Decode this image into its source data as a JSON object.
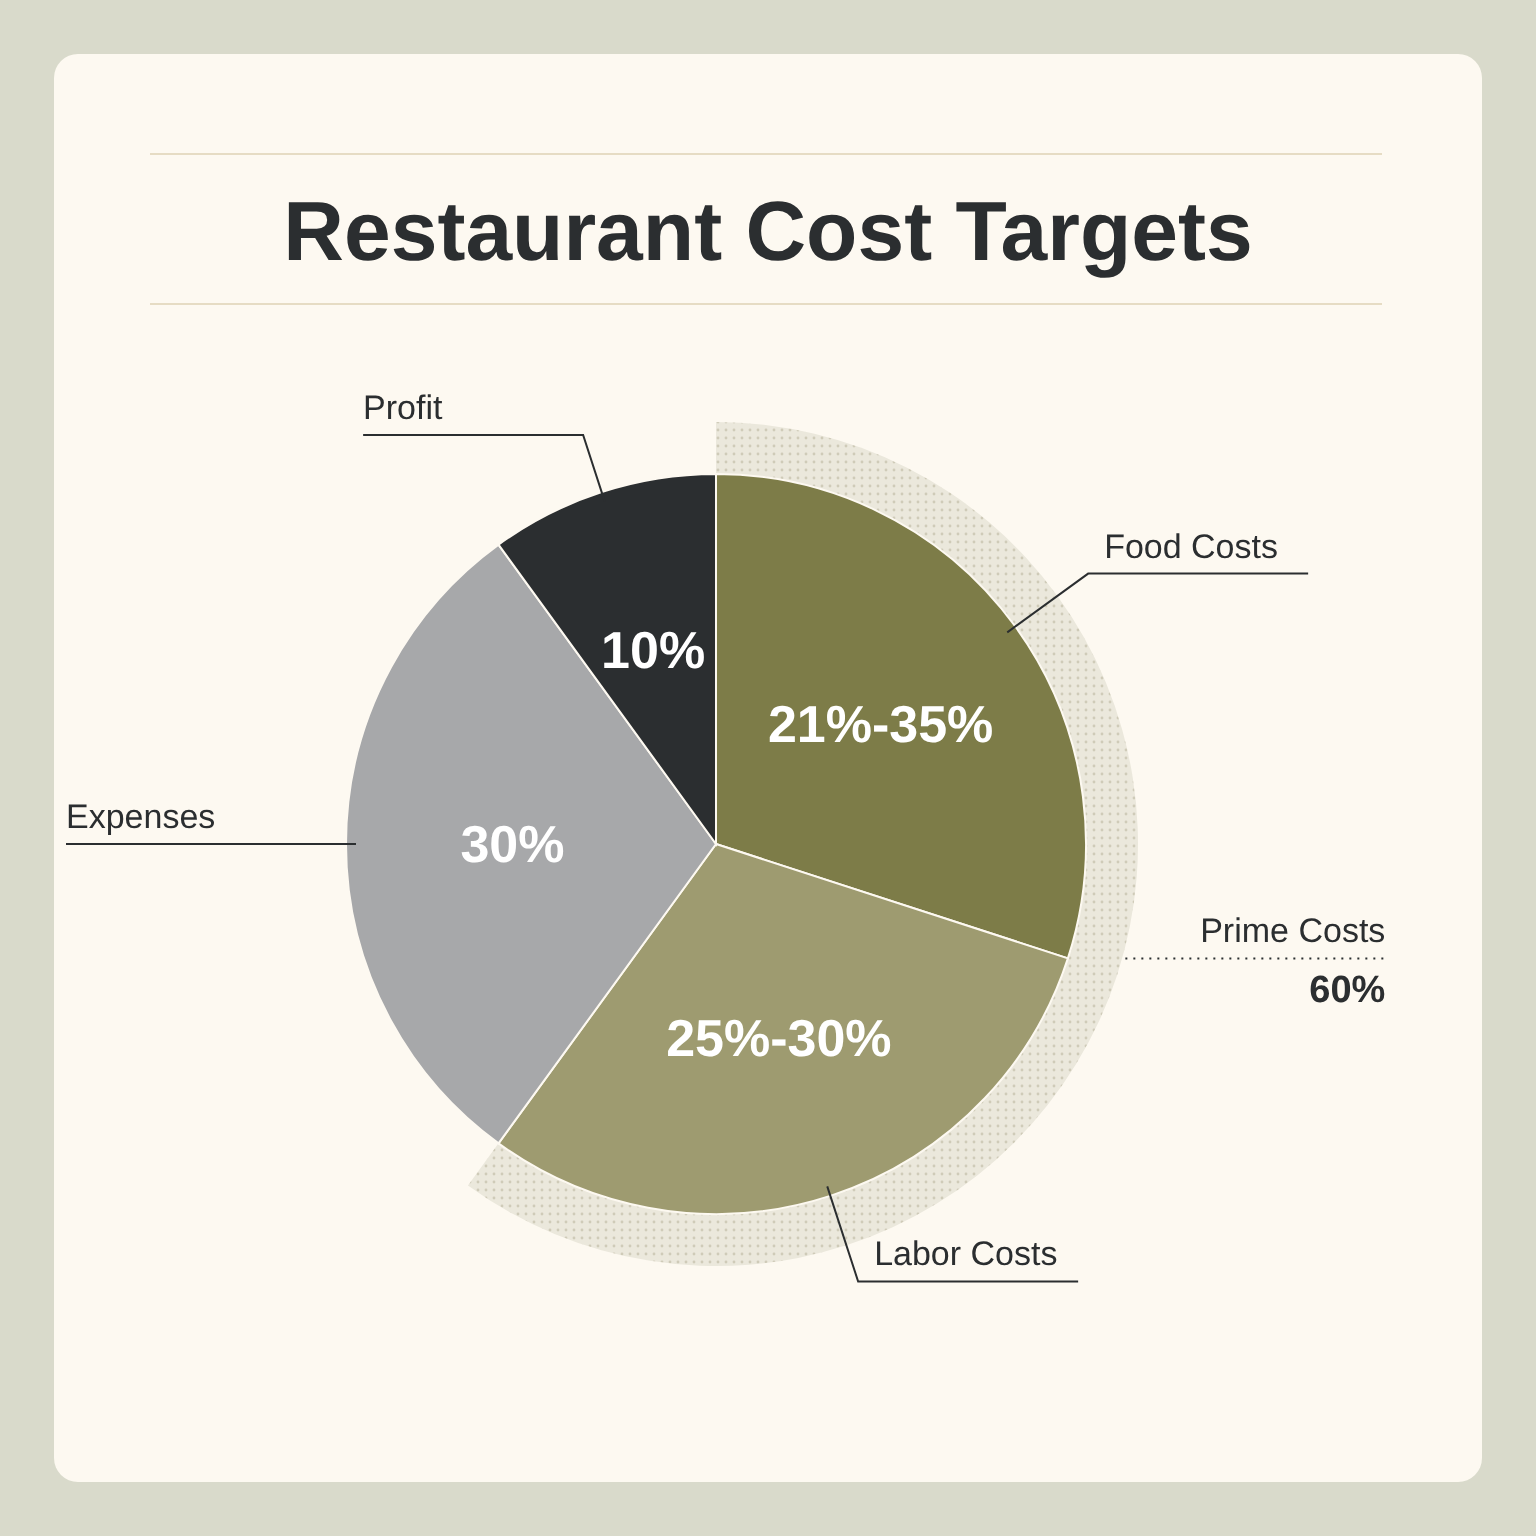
{
  "chart_data": {
    "type": "pie",
    "title": "Restaurant Cost Targets",
    "categories": [
      "Food Costs",
      "Labor Costs",
      "Expenses",
      "Profit"
    ],
    "values": [
      30,
      30,
      30,
      10
    ],
    "value_labels": [
      null,
      null,
      "30%",
      "10%"
    ],
    "colors": [
      "#7d7c48",
      "#9e9b70",
      "#a7a8aa",
      "#2b2e30"
    ],
    "annotations": [
      "21%-35%",
      "25%-30%",
      "Prime Costs\n60%"
    ]
  }
}
